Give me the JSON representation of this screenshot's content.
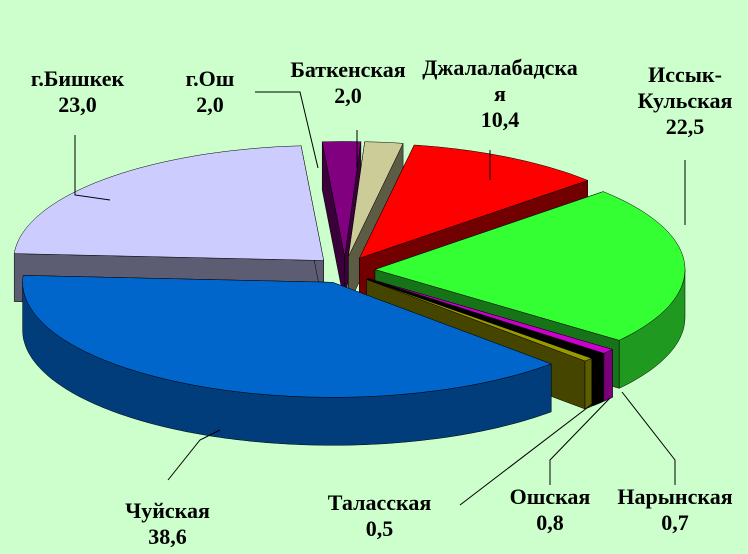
{
  "chart_data": {
    "type": "pie3d",
    "categories": [
      "Баткенская",
      "Джалалабадская",
      "Иссык-Кульская",
      "Нарынская",
      "Ошская",
      "Таласская",
      "Чуйская",
      "г.Бишкек",
      "г.Ош"
    ],
    "values": [
      2.0,
      10.4,
      22.5,
      0.7,
      0.8,
      0.5,
      38.6,
      23.0,
      2.0
    ],
    "value_labels": [
      "2,0",
      "10,4",
      "22,5",
      "0,7",
      "0,8",
      "0,5",
      "38,6",
      "23,0",
      "2,0"
    ],
    "colors": [
      "#cccc99",
      "#ff0000",
      "#33ff33",
      "#cc00cc",
      "#000000",
      "#999900",
      "#0066cc",
      "#ccccff",
      "#800080"
    ]
  }
}
